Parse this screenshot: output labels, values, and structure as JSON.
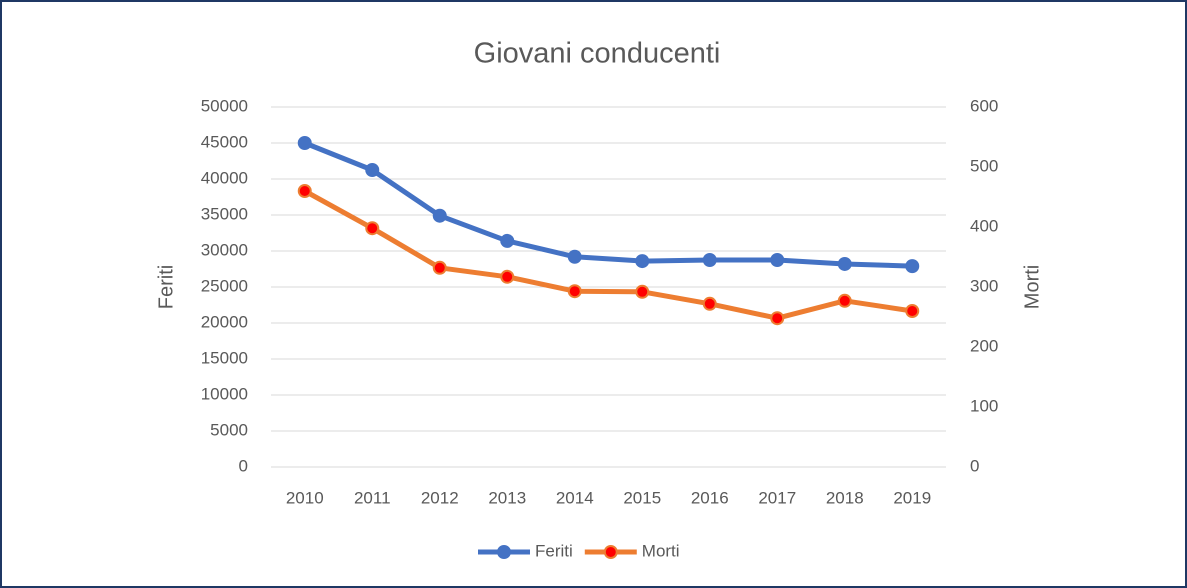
{
  "chart_data": {
    "type": "line",
    "title": "Giovani conducenti",
    "categories": [
      "2010",
      "2011",
      "2012",
      "2013",
      "2014",
      "2015",
      "2016",
      "2017",
      "2018",
      "2019"
    ],
    "series": [
      {
        "name": "Feriti",
        "color": "#4472c4",
        "values": [
          45000,
          41250,
          34900,
          31400,
          29200,
          28600,
          28750,
          28750,
          28200,
          27900
        ]
      },
      {
        "name": "Morti",
        "color": "#ed7d31",
        "marker_color": "#ff0000",
        "axis": "y2",
        "values": [
          460,
          398,
          332,
          317,
          293,
          292,
          272,
          248,
          277,
          260
        ]
      }
    ],
    "ylabel": "Feriti",
    "y2label": "Morti",
    "ylim": [
      0,
      50000
    ],
    "yticks": [
      0,
      5000,
      10000,
      15000,
      20000,
      25000,
      30000,
      35000,
      40000,
      45000,
      50000
    ],
    "y2lim": [
      0,
      600
    ],
    "y2ticks": [
      0,
      100,
      200,
      300,
      400,
      500,
      600
    ],
    "grid": true,
    "legend": "bottom"
  }
}
